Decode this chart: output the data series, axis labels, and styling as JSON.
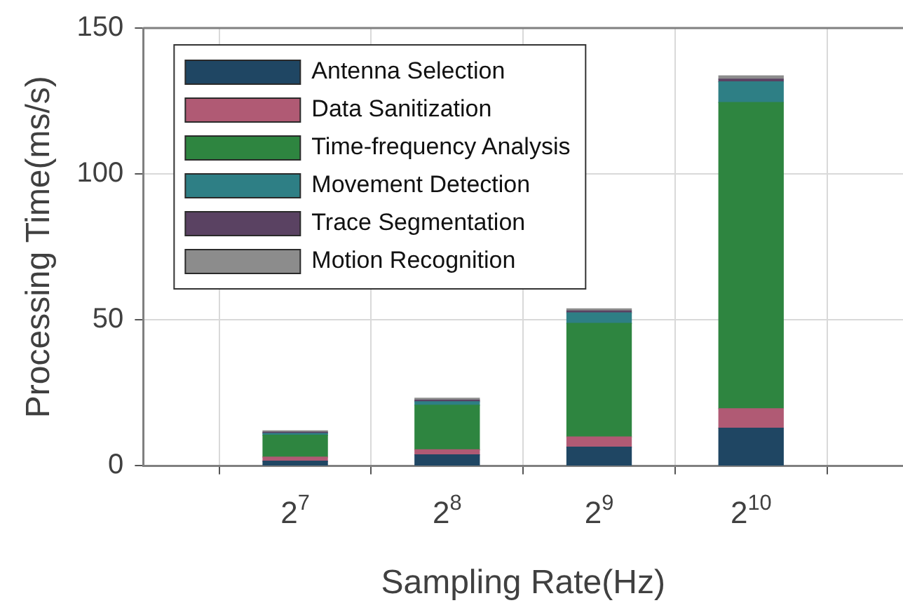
{
  "chart_data": {
    "type": "bar",
    "stacked": true,
    "xlabel": "Sampling Rate(Hz)",
    "ylabel": "Processing Time(ms/s)",
    "categories": [
      "2$^{7}$",
      "2$^{8}$",
      "2$^{9}$",
      "2$^{10}$"
    ],
    "ylim": [
      0,
      150
    ],
    "yticks": [
      0,
      50,
      100,
      150
    ],
    "grid": true,
    "legend": "top left",
    "series": [
      {
        "name": "Antenna Selection",
        "color": "#1f4663",
        "values": [
          1.6,
          3.8,
          6.4,
          12.9
        ]
      },
      {
        "name": "Data Sanitization",
        "color": "#b05a74",
        "values": [
          1.4,
          1.7,
          3.5,
          6.7
        ]
      },
      {
        "name": "Time-frequency Analysis",
        "color": "#2e8540",
        "values": [
          7.5,
          15.3,
          38.9,
          104.9
        ]
      },
      {
        "name": "Movement Detection",
        "color": "#2e7f85",
        "values": [
          0.6,
          1.2,
          3.6,
          7.1
        ]
      },
      {
        "name": "Trace Segmentation",
        "color": "#5a4262",
        "values": [
          0.4,
          0.5,
          0.7,
          0.9
        ]
      },
      {
        "name": "Motion Recognition",
        "color": "#8c8c8c",
        "values": [
          0.5,
          0.7,
          0.7,
          1.1
        ]
      }
    ]
  }
}
